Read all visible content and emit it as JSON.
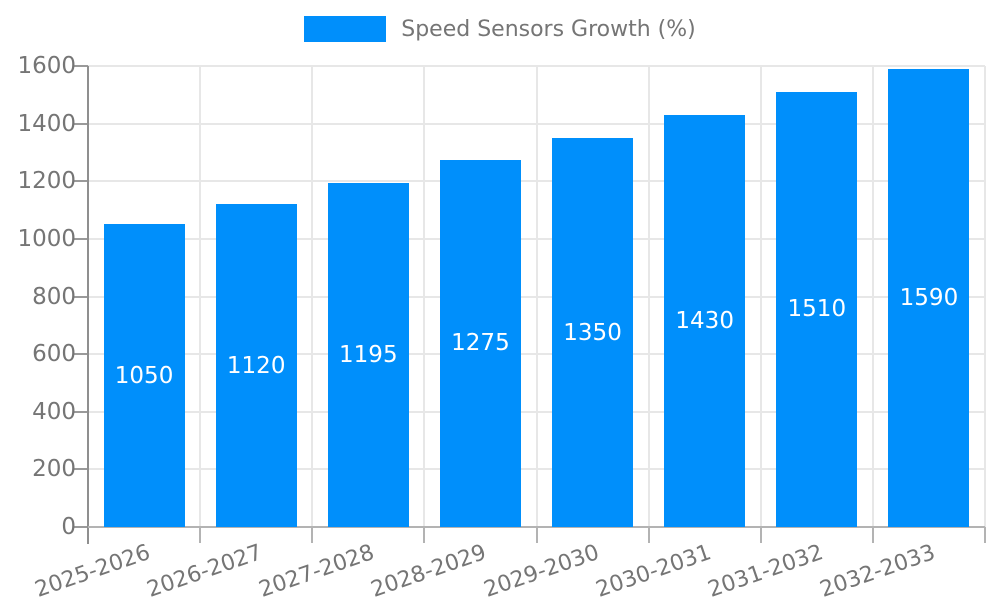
{
  "chart_data": {
    "type": "bar",
    "title": "Speed Sensors Growth (%)",
    "legend": {
      "label": "Speed Sensors Growth (%)",
      "swatch_color": "#008FFB",
      "position": "top-center"
    },
    "categories": [
      "2025-2026",
      "2026-2027",
      "2027-2028",
      "2028-2029",
      "2029-2030",
      "2030-2031",
      "2031-2032",
      "2032-2033"
    ],
    "series": [
      {
        "name": "Speed Sensors Growth (%)",
        "values": [
          1050,
          1120,
          1195,
          1275,
          1350,
          1430,
          1510,
          1590
        ]
      }
    ],
    "value_labels": [
      "1050",
      "1120",
      "1195",
      "1275",
      "1350",
      "1430",
      "1510",
      "1590"
    ],
    "xlabel": "",
    "ylabel": "",
    "ylim": [
      0,
      1600
    ],
    "ytick_step": 200,
    "ytick_labels": [
      "0",
      "200",
      "400",
      "600",
      "800",
      "1000",
      "1200",
      "1400",
      "1600"
    ],
    "grid": "horizontal and vertical light gray",
    "colors": {
      "bar": "#008FFB",
      "bar_value_text": "#ffffff",
      "axis_text": "#757575",
      "gridline": "#e7e7e7",
      "y_axis_line": "#8f8f8f",
      "x_baseline": "#b3b3b3",
      "background": "#ffffff"
    }
  }
}
